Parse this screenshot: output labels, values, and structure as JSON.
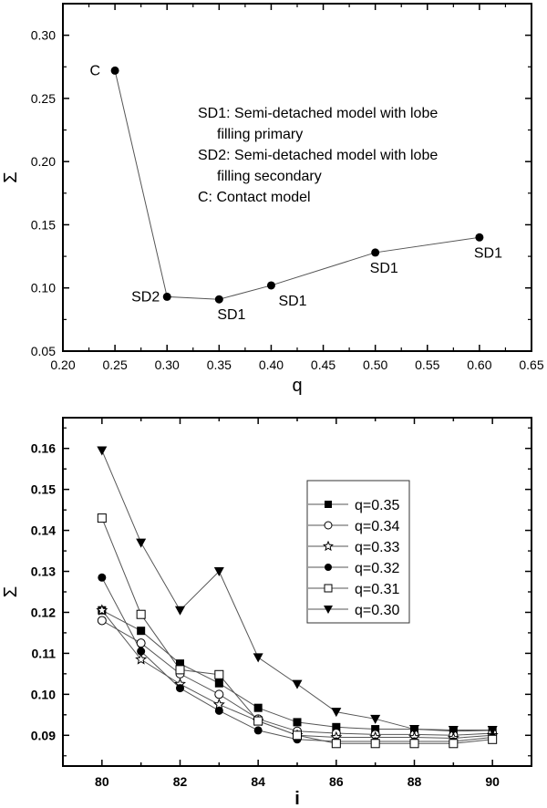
{
  "chart_data": [
    {
      "type": "line",
      "panel": "top",
      "title": "",
      "xlabel": "q",
      "ylabel": "Σ",
      "xlim": [
        0.2,
        0.65
      ],
      "ylim": [
        0.05,
        0.325
      ],
      "xticks": [
        "0.20",
        "0.25",
        "0.30",
        "0.35",
        "0.40",
        "0.45",
        "0.50",
        "0.55",
        "0.60",
        "0.65"
      ],
      "yticks": [
        "0.05",
        "0.10",
        "0.15",
        "0.20",
        "0.25",
        "0.30"
      ],
      "grid": false,
      "series": [
        {
          "name": "Σ vs q",
          "marker": "filled-circle",
          "x": [
            0.25,
            0.3,
            0.35,
            0.4,
            0.5,
            0.6
          ],
          "values": [
            0.272,
            0.093,
            0.091,
            0.102,
            0.128,
            0.14
          ],
          "point_labels": [
            "C",
            "SD2",
            "SD1",
            "SD1",
            "SD1",
            "SD1"
          ]
        }
      ],
      "annotations": [
        "SD1: Semi-detached model with lobe",
        "filling primary",
        "SD2: Semi-detached model with lobe",
        "filling secondary",
        "C: Contact model"
      ]
    },
    {
      "type": "line",
      "panel": "bottom",
      "title": "",
      "xlabel": "i",
      "ylabel": "Σ",
      "xlim": [
        79,
        91
      ],
      "ylim": [
        0.0825,
        0.1675
      ],
      "xticks": [
        "80",
        "82",
        "84",
        "86",
        "88",
        "90"
      ],
      "yticks": [
        "0.09",
        "0.10",
        "0.11",
        "0.12",
        "0.13",
        "0.14",
        "0.15",
        "0.16"
      ],
      "grid": false,
      "legend_position": "upper right (inside)",
      "x": [
        80,
        81,
        82,
        83,
        84,
        85,
        86,
        87,
        88,
        89,
        90
      ],
      "series": [
        {
          "name": "q=0.35",
          "marker": "filled-square",
          "values": [
            0.1205,
            0.1155,
            0.1075,
            0.1027,
            0.0967,
            0.0932,
            0.092,
            0.0915,
            0.0915,
            0.091,
            0.0912
          ]
        },
        {
          "name": "q=0.34",
          "marker": "open-circle",
          "values": [
            0.118,
            0.1125,
            0.105,
            0.1,
            0.094,
            0.091,
            0.0905,
            0.0902,
            0.0902,
            0.09,
            0.0905
          ]
        },
        {
          "name": "q=0.33",
          "marker": "open-star",
          "values": [
            0.1205,
            0.1085,
            0.1025,
            0.0975,
            0.0935,
            0.09,
            0.0895,
            0.0895,
            0.0895,
            0.0893,
            0.09
          ]
        },
        {
          "name": "q=0.32",
          "marker": "filled-circle",
          "values": [
            0.1285,
            0.1105,
            0.1015,
            0.096,
            0.0912,
            0.089,
            0.0885,
            0.0885,
            0.0885,
            0.0885,
            0.0895
          ]
        },
        {
          "name": "q=0.31",
          "marker": "open-square",
          "values": [
            0.143,
            0.1195,
            0.106,
            0.1048,
            0.0935,
            0.09,
            0.088,
            0.088,
            0.088,
            0.088,
            0.089
          ]
        },
        {
          "name": "q=0.30",
          "marker": "filled-down-triangle",
          "values": [
            0.1595,
            0.137,
            0.1205,
            0.13,
            0.109,
            0.1025,
            0.0957,
            0.094,
            0.0915,
            0.0913,
            0.0913
          ]
        }
      ]
    }
  ],
  "colors": {
    "axis": "#000000",
    "line": "#555555",
    "marker": "#000000",
    "background": "#ffffff"
  }
}
